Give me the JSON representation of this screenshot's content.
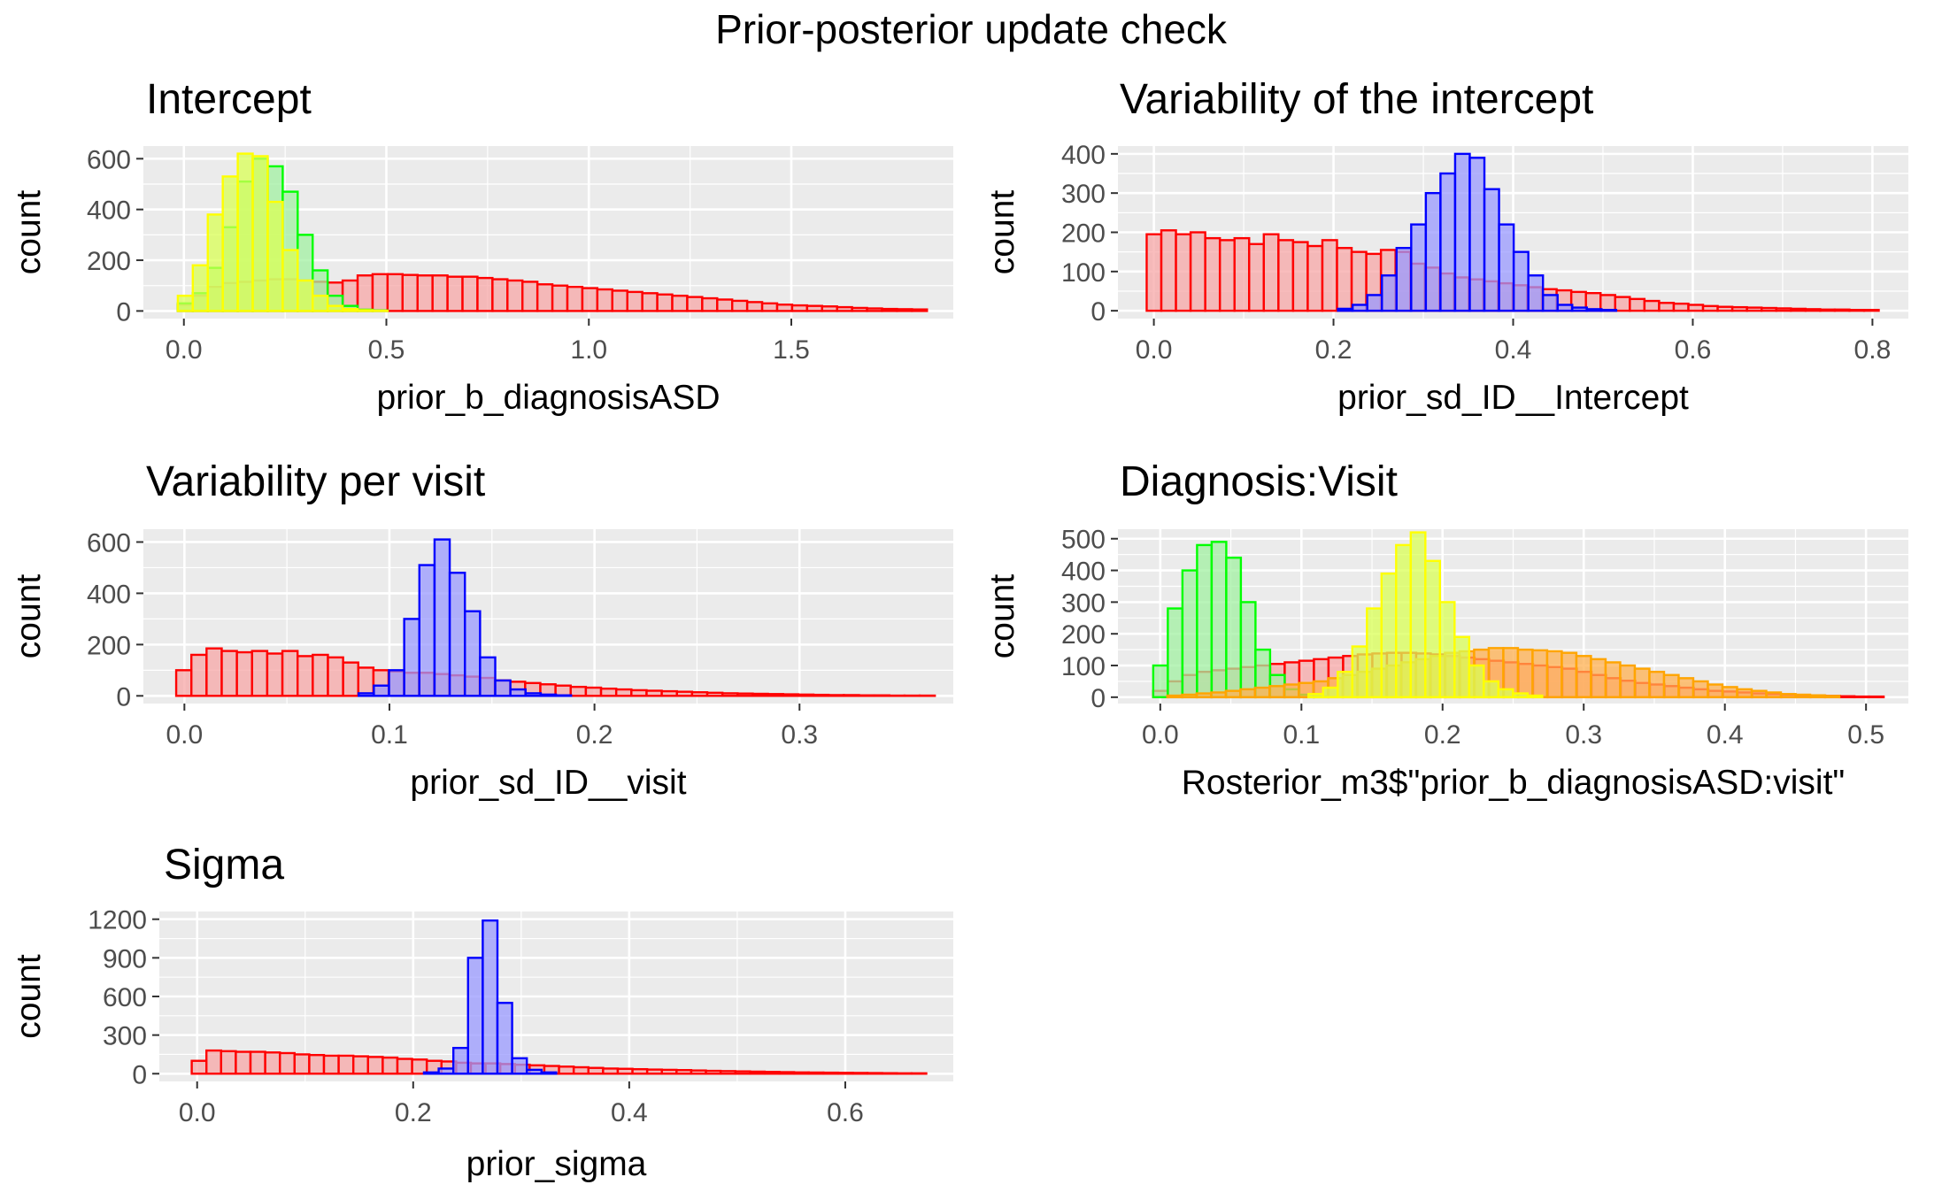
{
  "title": "Prior-posterior update check",
  "colors": {
    "panel_bg": "#EBEBEB",
    "grid": "#FFFFFF",
    "tick_text": "#4D4D4D",
    "red": "#FF0000",
    "red_fill": "#F7A7A7",
    "blue": "#0000FF",
    "blue_fill": "#9999FF",
    "green": "#00FF00",
    "green_fill": "#A2F0A2",
    "yellow": "#FFFF00",
    "yellow_fill": "#D9FF55",
    "orange": "#FFA500",
    "orange_fill": "#FFB050"
  },
  "chart_data": [
    {
      "type": "bar",
      "title": "Intercept",
      "xlabel": "prior_b_diagnosisASD",
      "ylabel": "count",
      "x_ticks": [
        "0.0",
        "0.5",
        "1.0",
        "1.5"
      ],
      "y_ticks": [
        "0",
        "200",
        "400",
        "600"
      ],
      "xlim": [
        -0.1,
        1.9
      ],
      "ylim": [
        -30,
        650
      ],
      "grid": true,
      "legend": "none",
      "bin_width": 0.037,
      "series": [
        {
          "color": "red",
          "x_start": -0.015,
          "values": [
            25,
            60,
            95,
            110,
            115,
            120,
            125,
            125,
            120,
            115,
            112,
            120,
            140,
            145,
            145,
            142,
            140,
            140,
            135,
            135,
            130,
            125,
            120,
            115,
            105,
            100,
            95,
            90,
            85,
            80,
            75,
            70,
            65,
            60,
            55,
            50,
            45,
            40,
            35,
            30,
            25,
            22,
            20,
            18,
            15,
            12,
            10,
            8,
            7,
            6
          ]
        },
        {
          "color": "green",
          "x_start": -0.015,
          "values": [
            30,
            70,
            170,
            330,
            510,
            600,
            570,
            470,
            300,
            160,
            60,
            20,
            5,
            2
          ]
        },
        {
          "color": "yellow",
          "x_start": -0.015,
          "values": [
            60,
            180,
            380,
            530,
            620,
            610,
            430,
            240,
            120,
            60,
            20,
            8,
            3,
            1
          ]
        }
      ]
    },
    {
      "type": "bar",
      "title": "Variability of the intercept",
      "xlabel": "prior_sd_ID__Intercept",
      "ylabel": "count",
      "x_ticks": [
        "0.0",
        "0.2",
        "0.4",
        "0.6",
        "0.8"
      ],
      "y_ticks": [
        "0",
        "100",
        "200",
        "300",
        "400"
      ],
      "xlim": [
        -0.04,
        0.84
      ],
      "ylim": [
        -20,
        420
      ],
      "grid": true,
      "legend": "none",
      "bin_width": 0.0163,
      "series": [
        {
          "color": "red",
          "x_start": -0.008,
          "values": [
            195,
            205,
            195,
            200,
            185,
            180,
            185,
            170,
            195,
            180,
            175,
            165,
            180,
            160,
            150,
            145,
            155,
            150,
            120,
            110,
            95,
            85,
            80,
            75,
            70,
            65,
            60,
            55,
            52,
            48,
            45,
            40,
            35,
            30,
            25,
            20,
            18,
            15,
            12,
            10,
            9,
            8,
            7,
            6,
            5,
            4,
            3,
            3,
            2,
            2
          ]
        },
        {
          "color": "blue",
          "x_start": 0.205,
          "values": [
            5,
            15,
            40,
            90,
            160,
            220,
            300,
            350,
            400,
            390,
            310,
            220,
            150,
            90,
            40,
            15,
            8,
            4,
            2
          ]
        }
      ]
    },
    {
      "type": "bar",
      "title": "Variability per visit",
      "xlabel": "prior_sd_ID__visit",
      "ylabel": "count",
      "x_ticks": [
        "0.0",
        "0.1",
        "0.2",
        "0.3"
      ],
      "y_ticks": [
        "0",
        "200",
        "400",
        "600"
      ],
      "xlim": [
        -0.02,
        0.375
      ],
      "ylim": [
        -30,
        650
      ],
      "grid": true,
      "legend": "none",
      "bin_width": 0.0074,
      "series": [
        {
          "color": "red",
          "x_start": -0.004,
          "values": [
            100,
            160,
            185,
            175,
            170,
            175,
            165,
            175,
            155,
            160,
            150,
            130,
            110,
            100,
            95,
            90,
            90,
            85,
            80,
            75,
            70,
            60,
            55,
            50,
            45,
            40,
            35,
            32,
            28,
            25,
            22,
            20,
            18,
            16,
            14,
            12,
            10,
            9,
            8,
            7,
            6,
            5,
            4,
            3,
            3,
            2,
            2,
            1,
            1,
            1
          ]
        },
        {
          "color": "blue",
          "x_start": 0.085,
          "values": [
            10,
            40,
            100,
            300,
            510,
            610,
            480,
            330,
            150,
            60,
            25,
            10,
            5,
            2
          ]
        }
      ]
    },
    {
      "type": "bar",
      "title": "Diagnosis:Visit",
      "xlabel": "Rosterior_m3$\"prior_b_diagnosisASD:visit\"",
      "ylabel": "count",
      "x_ticks": [
        "0.0",
        "0.1",
        "0.2",
        "0.3",
        "0.4",
        "0.5"
      ],
      "y_ticks": [
        "0",
        "100",
        "200",
        "300",
        "400",
        "500"
      ],
      "xlim": [
        -0.03,
        0.53
      ],
      "ylim": [
        -20,
        530
      ],
      "grid": true,
      "legend": "none",
      "bin_width": 0.01035,
      "series": [
        {
          "color": "red",
          "x_start": -0.005,
          "values": [
            20,
            50,
            70,
            80,
            85,
            90,
            95,
            100,
            105,
            110,
            115,
            120,
            125,
            130,
            135,
            138,
            140,
            140,
            138,
            135,
            130,
            125,
            120,
            115,
            110,
            105,
            100,
            95,
            90,
            80,
            70,
            60,
            52,
            45,
            40,
            35,
            30,
            25,
            20,
            18,
            15,
            12,
            10,
            8,
            6,
            5,
            4,
            3,
            2,
            2
          ]
        },
        {
          "color": "green",
          "x_start": -0.005,
          "values": [
            100,
            280,
            400,
            480,
            490,
            440,
            300,
            150,
            70,
            25,
            8,
            3
          ]
        },
        {
          "color": "orange",
          "x_start": 0.005,
          "values": [
            5,
            8,
            12,
            15,
            20,
            25,
            30,
            35,
            40,
            45,
            50,
            60,
            70,
            80,
            90,
            100,
            110,
            120,
            130,
            140,
            145,
            150,
            155,
            155,
            150,
            148,
            145,
            140,
            130,
            120,
            110,
            100,
            90,
            80,
            70,
            60,
            50,
            40,
            32,
            25,
            20,
            15,
            10,
            8,
            6,
            4
          ]
        },
        {
          "color": "yellow",
          "x_start": 0.105,
          "values": [
            10,
            30,
            80,
            160,
            280,
            390,
            480,
            520,
            430,
            300,
            190,
            100,
            50,
            25,
            12,
            5
          ]
        }
      ]
    },
    {
      "type": "bar",
      "title": "Sigma",
      "xlabel": "prior_sigma",
      "ylabel": "count",
      "x_ticks": [
        "0.0",
        "0.2",
        "0.4",
        "0.6"
      ],
      "y_ticks": [
        "0",
        "300",
        "600",
        "900",
        "1200"
      ],
      "xlim": [
        -0.035,
        0.7
      ],
      "ylim": [
        -60,
        1260
      ],
      "grid": true,
      "legend": "none",
      "bin_width": 0.0136,
      "series": [
        {
          "color": "red",
          "x_start": -0.005,
          "values": [
            100,
            180,
            175,
            170,
            170,
            165,
            160,
            150,
            145,
            140,
            140,
            135,
            130,
            125,
            115,
            110,
            100,
            95,
            85,
            80,
            80,
            75,
            70,
            65,
            60,
            55,
            50,
            45,
            40,
            38,
            35,
            32,
            30,
            28,
            25,
            22,
            20,
            18,
            16,
            14,
            12,
            10,
            9,
            8,
            7,
            6,
            5,
            4,
            3,
            3
          ]
        },
        {
          "color": "blue",
          "x_start": 0.21,
          "values": [
            10,
            40,
            200,
            900,
            1190,
            550,
            120,
            30,
            10
          ]
        }
      ]
    }
  ]
}
